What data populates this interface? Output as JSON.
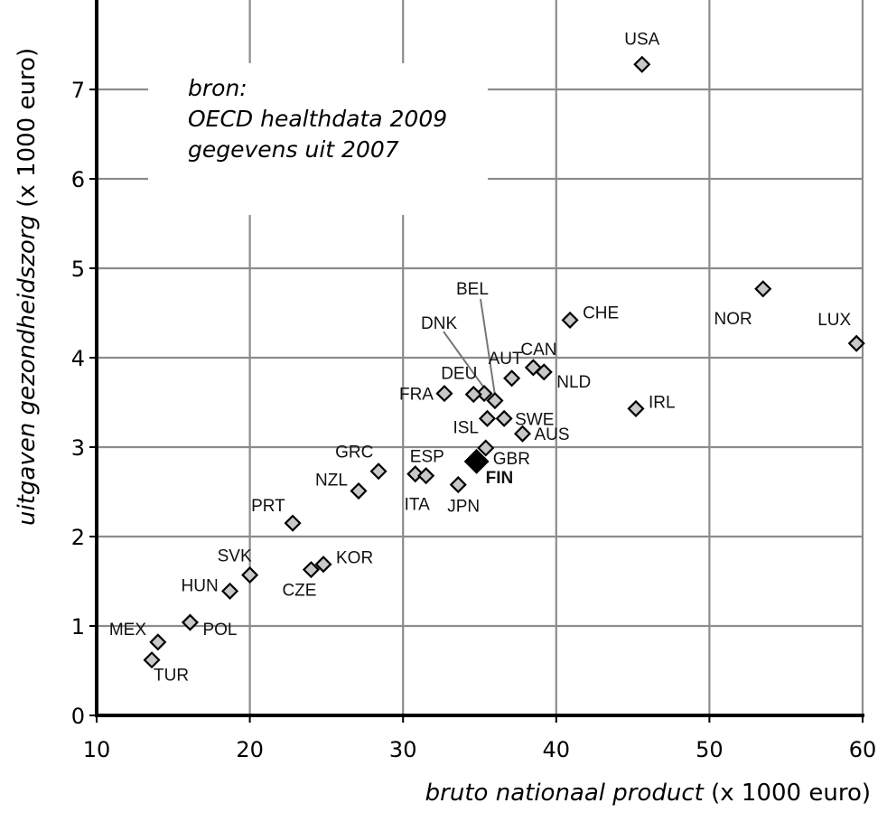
{
  "chart_data": {
    "type": "scatter",
    "xlabel_italic": "bruto nationaal product",
    "xlabel_unit": "(x 1000 euro)",
    "ylabel_italic": "uitgaven gezondheidszorg",
    "ylabel_unit": "(x 1000 euro)",
    "xlim": [
      10,
      60
    ],
    "ylim": [
      0,
      8
    ],
    "xticks": [
      10,
      20,
      30,
      40,
      50,
      60
    ],
    "yticks": [
      0,
      1,
      2,
      3,
      4,
      5,
      6,
      7
    ],
    "grid": true,
    "note": [
      "bron:",
      "OECD healthdata 2009",
      "gegevens uit 2007"
    ],
    "points": [
      {
        "label": "USA",
        "x": 45.6,
        "y": 7.28
      },
      {
        "label": "NOR",
        "x": 53.5,
        "y": 4.77
      },
      {
        "label": "LUX",
        "x": 59.6,
        "y": 4.16
      },
      {
        "label": "CHE",
        "x": 40.9,
        "y": 4.42
      },
      {
        "label": "IRL",
        "x": 45.2,
        "y": 3.43
      },
      {
        "label": "CAN",
        "x": 38.5,
        "y": 3.89
      },
      {
        "label": "NLD",
        "x": 39.2,
        "y": 3.84
      },
      {
        "label": "AUT",
        "x": 37.1,
        "y": 3.77
      },
      {
        "label": "BEL",
        "x": 36.0,
        "y": 3.52
      },
      {
        "label": "DNK",
        "x": 35.3,
        "y": 3.6
      },
      {
        "label": "DEU",
        "x": 34.6,
        "y": 3.59
      },
      {
        "label": "FRA",
        "x": 32.7,
        "y": 3.6
      },
      {
        "label": "SWE",
        "x": 36.6,
        "y": 3.32
      },
      {
        "label": "ISL",
        "x": 35.5,
        "y": 3.32
      },
      {
        "label": "AUS",
        "x": 37.8,
        "y": 3.15
      },
      {
        "label": "GBR",
        "x": 35.4,
        "y": 2.99
      },
      {
        "label": "FIN",
        "x": 34.8,
        "y": 2.84,
        "highlight": true
      },
      {
        "label": "ESP",
        "x": 30.8,
        "y": 2.7
      },
      {
        "label": "ITA",
        "x": 31.5,
        "y": 2.68
      },
      {
        "label": "JPN",
        "x": 33.6,
        "y": 2.58
      },
      {
        "label": "GRC",
        "x": 28.4,
        "y": 2.73
      },
      {
        "label": "NZL",
        "x": 27.1,
        "y": 2.51
      },
      {
        "label": "PRT",
        "x": 22.8,
        "y": 2.15
      },
      {
        "label": "KOR",
        "x": 24.8,
        "y": 1.69
      },
      {
        "label": "CZE",
        "x": 24.0,
        "y": 1.63
      },
      {
        "label": "SVK",
        "x": 20.0,
        "y": 1.57
      },
      {
        "label": "HUN",
        "x": 18.7,
        "y": 1.39
      },
      {
        "label": "POL",
        "x": 16.1,
        "y": 1.04
      },
      {
        "label": "MEX",
        "x": 14.0,
        "y": 0.82
      },
      {
        "label": "TUR",
        "x": 13.6,
        "y": 0.62
      }
    ]
  }
}
